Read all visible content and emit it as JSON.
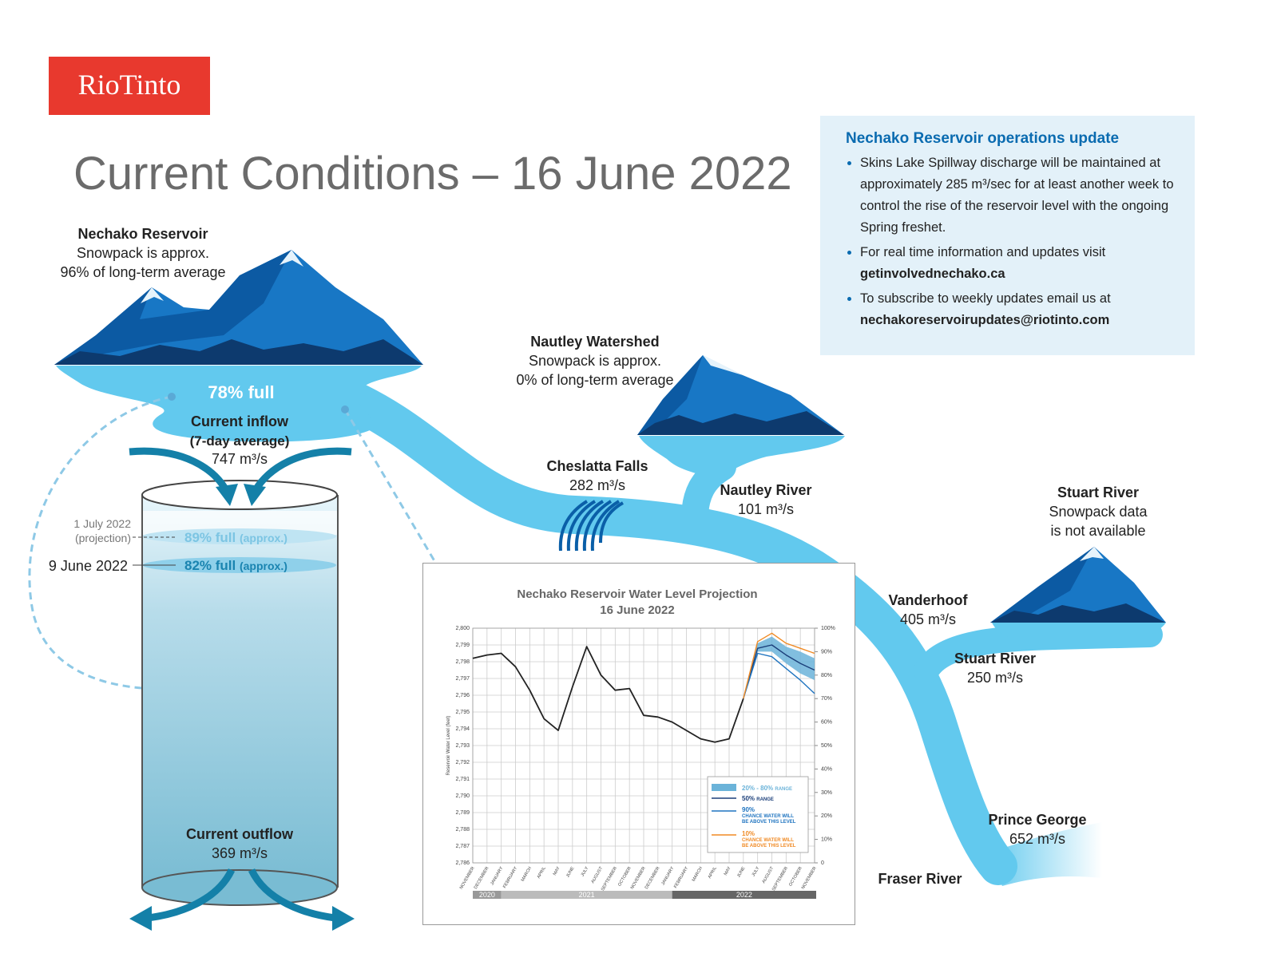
{
  "logo": "RioTinto",
  "title": "Current Conditions – 16 June 2022",
  "update": {
    "heading": "Nechako Reservoir operations update",
    "bullets": [
      {
        "text": "Skins Lake Spillway discharge will be maintained at approximately 285 m³/sec for at least another week to control the rise of the reservoir level with the ongoing Spring freshet."
      },
      {
        "text": "For real time information and updates visit",
        "link": "getinvolvednechako.ca"
      },
      {
        "text": "To subscribe to weekly updates email us at",
        "link": "nechakoreservoirupdates@riotinto.com"
      }
    ]
  },
  "nechako_reservoir": {
    "name": "Nechako Reservoir",
    "lines": [
      "Snowpack is approx.",
      "96% of long-term average"
    ],
    "level": "78% full"
  },
  "inflow": {
    "label": [
      "Current inflow",
      "(7-day average)"
    ],
    "value": "747 m³/s"
  },
  "outflow": {
    "label": "Current outflow",
    "value": "369 m³/s"
  },
  "projection": {
    "date": [
      "1 July 2022",
      "(projection)"
    ],
    "level": "89% full",
    "note": "(approx.)"
  },
  "previous": {
    "date": "9 June 2022",
    "level": "82% full",
    "note": "(approx.)"
  },
  "nautley_watershed": {
    "name": "Nautley Watershed",
    "lines": [
      "Snowpack is approx.",
      "0% of long-term average"
    ]
  },
  "stuart_watershed": {
    "name": "Stuart River",
    "lines": [
      "Snowpack data",
      "is not available"
    ]
  },
  "flows": [
    {
      "name": "Cheslatta Falls",
      "value": "282 m³/s"
    },
    {
      "name": "Nautley River",
      "value": "101 m³/s"
    },
    {
      "name": "Vanderhoof",
      "value": "405 m³/s"
    },
    {
      "name": "Stuart River",
      "value": "250 m³/s"
    },
    {
      "name": "Prince George",
      "value": "652 m³/s"
    },
    {
      "name": "Fraser River"
    }
  ],
  "chart_data": {
    "type": "line",
    "title": "Nechako Reservoir Water Level Projection",
    "subtitle": "16 June 2022",
    "y_label": "Reservoir Water Level (feet)",
    "categories": [
      "NOVEMBER",
      "DECEMBER",
      "JANUARY",
      "FEBRUARY",
      "MARCH",
      "APRIL",
      "MAY",
      "JUNE",
      "JULY",
      "AUGUST",
      "SEPTEMBER",
      "OCTOBER",
      "NOVEMBER",
      "DECEMBER",
      "JANUARY",
      "FEBRUARY",
      "MARCH",
      "APRIL",
      "MAY",
      "JUNE",
      "JULY",
      "AUGUST",
      "SEPTEMBER",
      "OCTOBER",
      "NOVEMBER"
    ],
    "years": [
      "2020",
      "2021",
      "2022"
    ],
    "ylim": [
      2786,
      2800
    ],
    "yticks": [
      {
        "value": 2786,
        "label": "2,786"
      },
      {
        "value": 2787,
        "label": "2,787"
      },
      {
        "value": 2788,
        "label": "2,788"
      },
      {
        "value": 2789,
        "label": "2,789"
      },
      {
        "value": 2790,
        "label": "2,790"
      },
      {
        "value": 2791,
        "label": "2,791"
      },
      {
        "value": 2792,
        "label": "2,792"
      },
      {
        "value": 2793,
        "label": "2,793"
      },
      {
        "value": 2794,
        "label": "2,794"
      },
      {
        "value": 2795,
        "label": "2,795"
      },
      {
        "value": 2796,
        "label": "2,796"
      },
      {
        "value": 2797,
        "label": "2,797"
      },
      {
        "value": 2798,
        "label": "2,798"
      },
      {
        "value": 2799,
        "label": "2,799"
      },
      {
        "value": 2800,
        "label": "2,800"
      }
    ],
    "y2lim": [
      0,
      100
    ],
    "y2ticks": [
      0,
      {
        "value": 10,
        "label": "10%"
      },
      {
        "value": 20,
        "label": "20%"
      },
      {
        "value": 30,
        "label": "30%"
      },
      {
        "value": 40,
        "label": "40%"
      },
      {
        "value": 50,
        "label": "50%"
      },
      {
        "value": 60,
        "label": "60%"
      },
      {
        "value": 70,
        "label": "70%"
      },
      {
        "value": 80,
        "label": "80%"
      },
      {
        "value": 90,
        "label": "90%"
      },
      {
        "value": 100,
        "label": "100%"
      }
    ],
    "grid": true,
    "observed": {
      "color": "#222222",
      "values": [
        2798.2,
        2798.4,
        2798.5,
        2797.7,
        2796.3,
        2794.6,
        2793.9,
        2796.5,
        2798.9,
        2797.2,
        2796.3,
        2796.4,
        2794.8,
        2794.7,
        2794.4,
        2793.9,
        2793.4,
        2793.2,
        2793.4,
        2795.8,
        null,
        null,
        null,
        null,
        null
      ]
    },
    "band": {
      "name": "20% - 80%",
      "note": "RANGE",
      "color": "#6bb3d9",
      "high": [
        null,
        null,
        null,
        null,
        null,
        null,
        null,
        null,
        null,
        null,
        null,
        null,
        null,
        null,
        null,
        null,
        null,
        null,
        null,
        2795.8,
        2799.1,
        2799.5,
        2798.9,
        2798.6,
        2798.2
      ],
      "low": [
        null,
        null,
        null,
        null,
        null,
        null,
        null,
        null,
        null,
        null,
        null,
        null,
        null,
        null,
        null,
        null,
        null,
        null,
        null,
        2795.8,
        2798.6,
        2798.6,
        2797.9,
        2797.3,
        2796.9
      ]
    },
    "series": [
      {
        "name": "50%",
        "note": [
          "RANGE"
        ],
        "color": "#1b3f7a",
        "values": [
          null,
          null,
          null,
          null,
          null,
          null,
          null,
          null,
          null,
          null,
          null,
          null,
          null,
          null,
          null,
          null,
          null,
          null,
          null,
          2795.8,
          2798.8,
          2799.0,
          2798.4,
          2797.9,
          2797.5
        ]
      },
      {
        "name": "90%",
        "note": [
          "CHANCE WATER WILL",
          "BE ABOVE THIS LEVEL"
        ],
        "color": "#1f74c0",
        "values": [
          null,
          null,
          null,
          null,
          null,
          null,
          null,
          null,
          null,
          null,
          null,
          null,
          null,
          null,
          null,
          null,
          null,
          null,
          null,
          2795.8,
          2798.5,
          2798.3,
          2797.6,
          2796.9,
          2796.1
        ]
      },
      {
        "name": "10%",
        "note": [
          "CHANCE WATER WILL",
          "BE ABOVE THIS LEVEL"
        ],
        "color": "#f08a24",
        "values": [
          null,
          null,
          null,
          null,
          null,
          null,
          null,
          null,
          null,
          null,
          null,
          null,
          null,
          null,
          null,
          null,
          null,
          null,
          null,
          2795.8,
          2799.2,
          2799.7,
          2799.1,
          2798.8,
          2798.5
        ]
      }
    ]
  }
}
